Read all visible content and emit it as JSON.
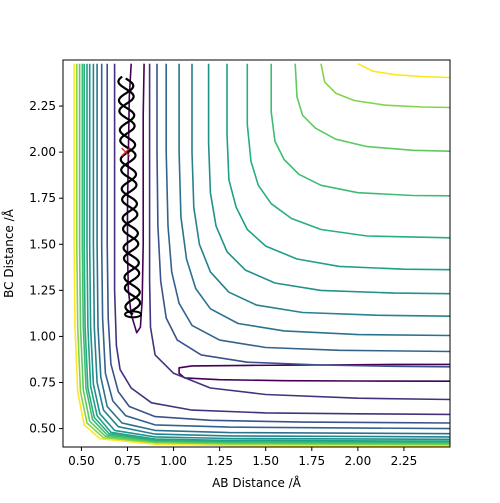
{
  "chart_data": {
    "type": "contour",
    "title": "",
    "xlabel": "AB Distance /Å",
    "ylabel": "BC Distance /Å",
    "xlim": [
      0.4,
      2.5
    ],
    "ylim": [
      0.4,
      2.5
    ],
    "xticks": [
      "0.50",
      "0.75",
      "1.00",
      "1.25",
      "1.50",
      "1.75",
      "2.00",
      "2.25"
    ],
    "yticks": [
      "0.50",
      "0.75",
      "1.00",
      "1.25",
      "1.50",
      "1.75",
      "2.00",
      "2.25"
    ],
    "grid": false,
    "colormap": [
      "#440154",
      "#3b528b",
      "#21918c",
      "#5ec962",
      "#fde725"
    ],
    "contours": [
      {
        "level_index": 0,
        "color": "#440154",
        "points": [
          [
            0.77,
            2.48
          ],
          [
            0.76,
            2.3
          ],
          [
            0.755,
            2.0
          ],
          [
            0.75,
            1.7
          ],
          [
            0.75,
            1.45
          ],
          [
            0.755,
            1.25
          ],
          [
            0.77,
            1.12
          ],
          [
            0.8,
            1.02
          ],
          [
            0.82,
            1.05
          ],
          [
            0.83,
            1.2
          ],
          [
            0.835,
            1.5
          ],
          [
            0.835,
            1.9
          ],
          [
            0.835,
            2.2
          ],
          [
            0.84,
            2.48
          ]
        ]
      },
      {
        "level_index": 0,
        "color": "#440154",
        "points": [
          [
            2.5,
            0.848
          ],
          [
            2.2,
            0.848
          ],
          [
            1.8,
            0.845
          ],
          [
            1.4,
            0.843
          ],
          [
            1.1,
            0.84
          ],
          [
            1.03,
            0.83
          ],
          [
            1.03,
            0.8
          ],
          [
            1.06,
            0.775
          ],
          [
            1.25,
            0.765
          ],
          [
            1.6,
            0.76
          ],
          [
            2.0,
            0.758
          ],
          [
            2.5,
            0.757
          ]
        ]
      },
      {
        "level_index": 1,
        "color": "#46317e",
        "points": [
          [
            0.87,
            2.48
          ],
          [
            0.87,
            2.0
          ],
          [
            0.87,
            1.6
          ],
          [
            0.87,
            1.3
          ],
          [
            0.875,
            1.05
          ],
          [
            0.9,
            0.9
          ],
          [
            1.0,
            0.8
          ],
          [
            1.2,
            0.72
          ],
          [
            1.5,
            0.685
          ],
          [
            2.0,
            0.665
          ],
          [
            2.5,
            0.658
          ]
        ]
      },
      {
        "level_index": 1,
        "color": "#46317e",
        "points": [
          [
            0.68,
            2.48
          ],
          [
            0.68,
            2.0
          ],
          [
            0.68,
            1.6
          ],
          [
            0.68,
            1.25
          ],
          [
            0.69,
            0.95
          ],
          [
            0.71,
            0.82
          ],
          [
            0.77,
            0.72
          ],
          [
            0.88,
            0.64
          ],
          [
            1.1,
            0.6
          ],
          [
            1.5,
            0.585
          ],
          [
            2.0,
            0.58
          ],
          [
            2.5,
            0.577
          ]
        ]
      },
      {
        "level_index": 2,
        "color": "#3b528b",
        "points": [
          [
            0.91,
            2.48
          ],
          [
            0.91,
            2.0
          ],
          [
            0.915,
            1.6
          ],
          [
            0.93,
            1.3
          ],
          [
            0.96,
            1.1
          ],
          [
            1.02,
            0.98
          ],
          [
            1.15,
            0.9
          ],
          [
            1.4,
            0.86
          ],
          [
            1.8,
            0.845
          ],
          [
            2.2,
            0.838
          ],
          [
            2.5,
            0.835
          ]
        ]
      },
      {
        "level_index": 2,
        "color": "#3b528b",
        "points": [
          [
            0.64,
            2.48
          ],
          [
            0.64,
            2.0
          ],
          [
            0.64,
            1.5
          ],
          [
            0.645,
            1.1
          ],
          [
            0.66,
            0.85
          ],
          [
            0.7,
            0.7
          ],
          [
            0.76,
            0.62
          ],
          [
            0.9,
            0.565
          ],
          [
            1.2,
            0.545
          ],
          [
            1.7,
            0.535
          ],
          [
            2.5,
            0.53
          ]
        ]
      },
      {
        "level_index": 3,
        "color": "#33638d",
        "points": [
          [
            0.96,
            2.48
          ],
          [
            0.96,
            2.0
          ],
          [
            0.97,
            1.6
          ],
          [
            0.99,
            1.35
          ],
          [
            1.03,
            1.18
          ],
          [
            1.1,
            1.06
          ],
          [
            1.25,
            0.98
          ],
          [
            1.5,
            0.94
          ],
          [
            1.9,
            0.925
          ],
          [
            2.5,
            0.918
          ]
        ]
      },
      {
        "level_index": 3,
        "color": "#33638d",
        "points": [
          [
            0.61,
            2.48
          ],
          [
            0.61,
            2.0
          ],
          [
            0.61,
            1.5
          ],
          [
            0.615,
            1.1
          ],
          [
            0.63,
            0.8
          ],
          [
            0.67,
            0.65
          ],
          [
            0.74,
            0.57
          ],
          [
            0.9,
            0.52
          ],
          [
            1.3,
            0.508
          ],
          [
            2.5,
            0.5
          ]
        ]
      },
      {
        "level_index": 4,
        "color": "#2c728e",
        "points": [
          [
            1.03,
            2.48
          ],
          [
            1.03,
            2.0
          ],
          [
            1.04,
            1.65
          ],
          [
            1.07,
            1.42
          ],
          [
            1.12,
            1.26
          ],
          [
            1.2,
            1.15
          ],
          [
            1.35,
            1.07
          ],
          [
            1.6,
            1.03
          ],
          [
            2.0,
            1.01
          ],
          [
            2.5,
            1.005
          ]
        ]
      },
      {
        "level_index": 4,
        "color": "#2c728e",
        "points": [
          [
            0.585,
            2.48
          ],
          [
            0.585,
            2.0
          ],
          [
            0.585,
            1.5
          ],
          [
            0.59,
            1.05
          ],
          [
            0.605,
            0.78
          ],
          [
            0.64,
            0.62
          ],
          [
            0.72,
            0.53
          ],
          [
            0.9,
            0.49
          ],
          [
            1.3,
            0.478
          ],
          [
            2.5,
            0.472
          ]
        ]
      },
      {
        "level_index": 5,
        "color": "#26828e",
        "points": [
          [
            1.1,
            2.48
          ],
          [
            1.1,
            2.0
          ],
          [
            1.11,
            1.7
          ],
          [
            1.14,
            1.5
          ],
          [
            1.2,
            1.35
          ],
          [
            1.3,
            1.24
          ],
          [
            1.45,
            1.17
          ],
          [
            1.7,
            1.13
          ],
          [
            2.1,
            1.115
          ],
          [
            2.5,
            1.11
          ]
        ]
      },
      {
        "level_index": 5,
        "color": "#26828e",
        "points": [
          [
            0.565,
            2.48
          ],
          [
            0.565,
            2.0
          ],
          [
            0.565,
            1.5
          ],
          [
            0.57,
            1.05
          ],
          [
            0.585,
            0.75
          ],
          [
            0.62,
            0.6
          ],
          [
            0.7,
            0.51
          ],
          [
            0.9,
            0.47
          ],
          [
            1.3,
            0.46
          ],
          [
            2.5,
            0.455
          ]
        ]
      },
      {
        "level_index": 6,
        "color": "#21918c",
        "points": [
          [
            1.19,
            2.48
          ],
          [
            1.19,
            2.05
          ],
          [
            1.2,
            1.78
          ],
          [
            1.23,
            1.6
          ],
          [
            1.29,
            1.46
          ],
          [
            1.39,
            1.36
          ],
          [
            1.55,
            1.29
          ],
          [
            1.8,
            1.25
          ],
          [
            2.2,
            1.235
          ],
          [
            2.5,
            1.232
          ]
        ]
      },
      {
        "level_index": 6,
        "color": "#21918c",
        "points": [
          [
            0.545,
            2.48
          ],
          [
            0.545,
            2.0
          ],
          [
            0.545,
            1.5
          ],
          [
            0.55,
            1.05
          ],
          [
            0.565,
            0.74
          ],
          [
            0.6,
            0.58
          ],
          [
            0.68,
            0.49
          ],
          [
            0.9,
            0.455
          ],
          [
            1.3,
            0.446
          ],
          [
            2.5,
            0.442
          ]
        ]
      },
      {
        "level_index": 7,
        "color": "#1fa088",
        "points": [
          [
            1.29,
            2.48
          ],
          [
            1.29,
            2.1
          ],
          [
            1.3,
            1.85
          ],
          [
            1.34,
            1.7
          ],
          [
            1.4,
            1.58
          ],
          [
            1.5,
            1.49
          ],
          [
            1.67,
            1.42
          ],
          [
            1.9,
            1.38
          ],
          [
            2.25,
            1.365
          ],
          [
            2.5,
            1.362
          ]
        ]
      },
      {
        "level_index": 7,
        "color": "#1fa088",
        "points": [
          [
            0.53,
            2.48
          ],
          [
            0.53,
            2.0
          ],
          [
            0.53,
            1.5
          ],
          [
            0.535,
            1.05
          ],
          [
            0.55,
            0.73
          ],
          [
            0.585,
            0.57
          ],
          [
            0.66,
            0.48
          ],
          [
            0.9,
            0.443
          ],
          [
            1.3,
            0.436
          ],
          [
            2.5,
            0.432
          ]
        ]
      },
      {
        "level_index": 8,
        "color": "#28ae80",
        "points": [
          [
            1.4,
            2.48
          ],
          [
            1.4,
            2.15
          ],
          [
            1.42,
            1.95
          ],
          [
            1.46,
            1.82
          ],
          [
            1.53,
            1.72
          ],
          [
            1.64,
            1.64
          ],
          [
            1.8,
            1.58
          ],
          [
            2.05,
            1.545
          ],
          [
            2.5,
            1.535
          ]
        ]
      },
      {
        "level_index": 8,
        "color": "#28ae80",
        "points": [
          [
            0.515,
            2.48
          ],
          [
            0.515,
            2.0
          ],
          [
            0.515,
            1.5
          ],
          [
            0.52,
            1.05
          ],
          [
            0.535,
            0.72
          ],
          [
            0.57,
            0.56
          ],
          [
            0.65,
            0.472
          ],
          [
            0.9,
            0.436
          ],
          [
            1.3,
            0.428
          ],
          [
            2.5,
            0.425
          ]
        ]
      },
      {
        "level_index": 9,
        "color": "#3fbc73",
        "points": [
          [
            1.53,
            2.48
          ],
          [
            1.53,
            2.22
          ],
          [
            1.55,
            2.06
          ],
          [
            1.6,
            1.96
          ],
          [
            1.68,
            1.88
          ],
          [
            1.8,
            1.82
          ],
          [
            2.0,
            1.78
          ],
          [
            2.3,
            1.765
          ],
          [
            2.5,
            1.763
          ]
        ]
      },
      {
        "level_index": 9,
        "color": "#3fbc73",
        "points": [
          [
            0.505,
            2.48
          ],
          [
            0.505,
            2.0
          ],
          [
            0.505,
            1.5
          ],
          [
            0.51,
            1.05
          ],
          [
            0.525,
            0.72
          ],
          [
            0.56,
            0.55
          ],
          [
            0.64,
            0.465
          ],
          [
            0.9,
            0.43
          ],
          [
            1.3,
            0.423
          ],
          [
            2.5,
            0.42
          ]
        ]
      },
      {
        "level_index": 10,
        "color": "#5ec962",
        "points": [
          [
            1.66,
            2.48
          ],
          [
            1.67,
            2.3
          ],
          [
            1.7,
            2.2
          ],
          [
            1.77,
            2.13
          ],
          [
            1.88,
            2.07
          ],
          [
            2.05,
            2.03
          ],
          [
            2.3,
            2.01
          ],
          [
            2.5,
            2.005
          ]
        ]
      },
      {
        "level_index": 10,
        "color": "#5ec962",
        "points": [
          [
            0.49,
            2.48
          ],
          [
            0.49,
            2.0
          ],
          [
            0.49,
            1.5
          ],
          [
            0.495,
            1.05
          ],
          [
            0.51,
            0.71
          ],
          [
            0.545,
            0.54
          ],
          [
            0.63,
            0.458
          ],
          [
            0.9,
            0.425
          ],
          [
            1.3,
            0.418
          ],
          [
            2.5,
            0.415
          ]
        ]
      },
      {
        "level_index": 11,
        "color": "#84d44b",
        "points": [
          [
            1.8,
            2.48
          ],
          [
            1.82,
            2.38
          ],
          [
            1.88,
            2.32
          ],
          [
            1.98,
            2.28
          ],
          [
            2.15,
            2.255
          ],
          [
            2.35,
            2.245
          ],
          [
            2.5,
            2.242
          ]
        ]
      },
      {
        "level_index": 11,
        "color": "#84d44b",
        "points": [
          [
            0.475,
            2.48
          ],
          [
            0.475,
            2.0
          ],
          [
            0.475,
            1.5
          ],
          [
            0.48,
            1.05
          ],
          [
            0.495,
            0.7
          ],
          [
            0.53,
            0.53
          ],
          [
            0.62,
            0.45
          ],
          [
            0.9,
            0.42
          ],
          [
            1.3,
            0.413
          ],
          [
            2.5,
            0.41
          ]
        ]
      },
      {
        "level_index": 12,
        "color": "#fde725",
        "points": [
          [
            2.0,
            2.48
          ],
          [
            2.08,
            2.44
          ],
          [
            2.2,
            2.42
          ],
          [
            2.35,
            2.41
          ],
          [
            2.5,
            2.405
          ]
        ]
      },
      {
        "level_index": 12,
        "color": "#fde725",
        "points": [
          [
            0.46,
            2.48
          ],
          [
            0.46,
            2.0
          ],
          [
            0.46,
            1.5
          ],
          [
            0.465,
            1.05
          ],
          [
            0.48,
            0.7
          ],
          [
            0.515,
            0.52
          ],
          [
            0.6,
            0.445
          ],
          [
            0.9,
            0.415
          ],
          [
            1.3,
            0.408
          ],
          [
            2.5,
            0.405
          ]
        ]
      }
    ],
    "trajectory": {
      "color": "#000000",
      "start": [
        0.74,
        2.4
      ],
      "end": [
        0.78,
        1.12
      ],
      "x_center": 0.765,
      "amplitude": 0.04,
      "oscillations": 8
    },
    "marker": {
      "symbol": "x",
      "color": "#d62728",
      "x": 0.74,
      "y": 2.0
    }
  }
}
